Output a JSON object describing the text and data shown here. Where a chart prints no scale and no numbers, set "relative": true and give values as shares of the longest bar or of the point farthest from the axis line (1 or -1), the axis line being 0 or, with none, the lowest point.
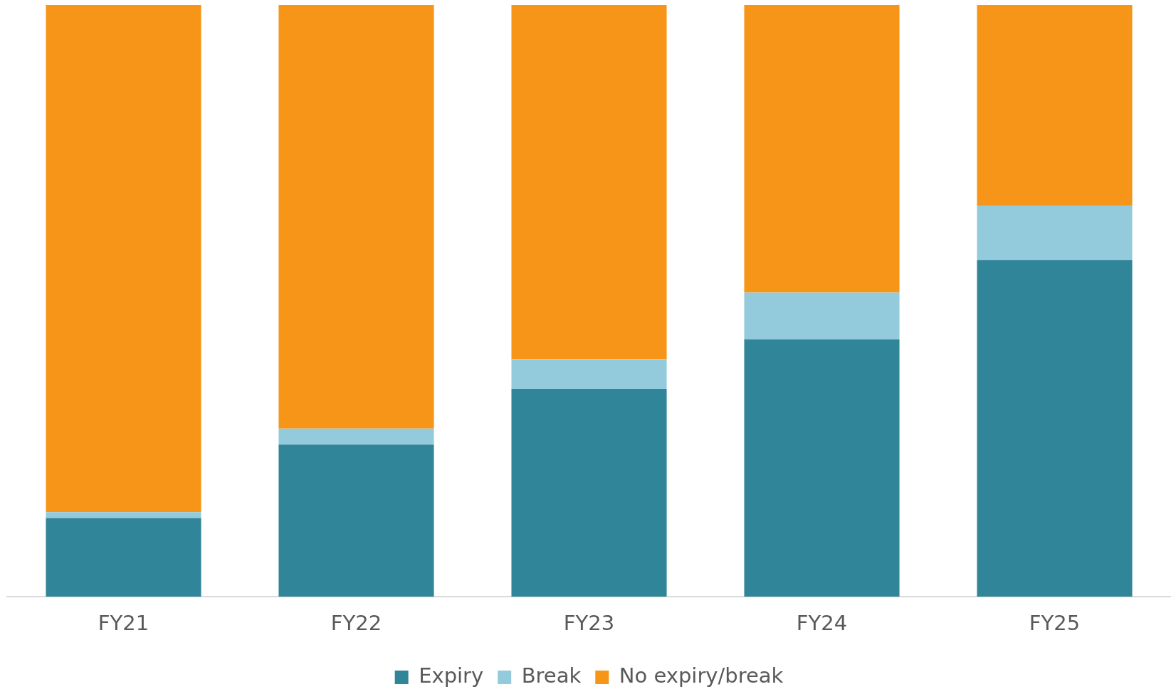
{
  "chart_data": {
    "type": "bar",
    "stacked": true,
    "relative": true,
    "categories": [
      "FY21",
      "FY22",
      "FY23",
      "FY24",
      "FY25"
    ],
    "series": [
      {
        "name": "Expiry",
        "color": "#318599",
        "values": [
          0.133,
          0.257,
          0.351,
          0.435,
          0.569
        ]
      },
      {
        "name": "Break",
        "color": "#93cbdc",
        "values": [
          0.01,
          0.027,
          0.05,
          0.079,
          0.092
        ]
      },
      {
        "name": "No expiry/break",
        "color": "#f69518",
        "values": [
          0.857,
          0.716,
          0.599,
          0.486,
          0.339
        ]
      }
    ],
    "legend": "bottom",
    "grid": false
  }
}
